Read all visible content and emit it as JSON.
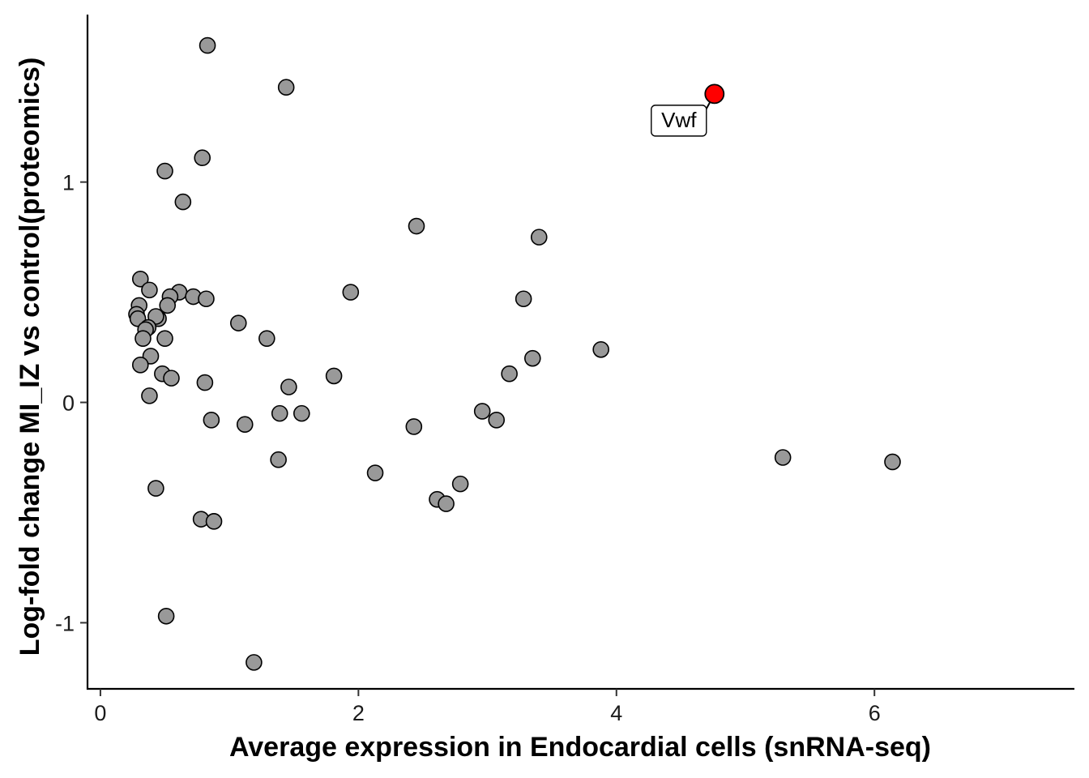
{
  "chart_data": {
    "type": "scatter",
    "title": "",
    "xlabel": "Average expression in Endocardial cells (snRNA-seq)",
    "ylabel": "Log-fold change MI_IZ vs control(proteomics)",
    "xlim": [
      -0.1,
      7.55
    ],
    "ylim": [
      -1.3,
      1.76
    ],
    "x_ticks": [
      0,
      2,
      4,
      6
    ],
    "x_tick_labels": [
      "0",
      "2",
      "4",
      "6"
    ],
    "y_ticks": [
      -1,
      0,
      1
    ],
    "y_tick_labels": [
      "-1",
      "0",
      "1"
    ],
    "grid": false,
    "legend": "none",
    "colors": {
      "point_fill": "#999999",
      "point_stroke": "#000000",
      "highlight_fill": "#ff0000"
    },
    "points": [
      {
        "x": 0.83,
        "y": 1.62
      },
      {
        "x": 1.44,
        "y": 1.43
      },
      {
        "x": 0.79,
        "y": 1.11
      },
      {
        "x": 0.5,
        "y": 1.05
      },
      {
        "x": 0.64,
        "y": 0.91
      },
      {
        "x": 2.45,
        "y": 0.8
      },
      {
        "x": 3.4,
        "y": 0.75
      },
      {
        "x": 0.31,
        "y": 0.56
      },
      {
        "x": 0.38,
        "y": 0.51
      },
      {
        "x": 0.61,
        "y": 0.5
      },
      {
        "x": 1.94,
        "y": 0.5
      },
      {
        "x": 0.54,
        "y": 0.48
      },
      {
        "x": 0.72,
        "y": 0.48
      },
      {
        "x": 0.82,
        "y": 0.47
      },
      {
        "x": 3.28,
        "y": 0.47
      },
      {
        "x": 0.3,
        "y": 0.44
      },
      {
        "x": 0.52,
        "y": 0.44
      },
      {
        "x": 0.28,
        "y": 0.4
      },
      {
        "x": 0.45,
        "y": 0.38
      },
      {
        "x": 0.43,
        "y": 0.39
      },
      {
        "x": 0.29,
        "y": 0.38
      },
      {
        "x": 0.37,
        "y": 0.34
      },
      {
        "x": 0.35,
        "y": 0.33
      },
      {
        "x": 1.07,
        "y": 0.36
      },
      {
        "x": 0.33,
        "y": 0.29
      },
      {
        "x": 0.5,
        "y": 0.29
      },
      {
        "x": 1.29,
        "y": 0.29
      },
      {
        "x": 3.88,
        "y": 0.24
      },
      {
        "x": 0.39,
        "y": 0.21
      },
      {
        "x": 3.35,
        "y": 0.2
      },
      {
        "x": 0.31,
        "y": 0.17
      },
      {
        "x": 0.48,
        "y": 0.13
      },
      {
        "x": 3.17,
        "y": 0.13
      },
      {
        "x": 1.81,
        "y": 0.12
      },
      {
        "x": 0.55,
        "y": 0.11
      },
      {
        "x": 0.81,
        "y": 0.09
      },
      {
        "x": 1.46,
        "y": 0.07
      },
      {
        "x": 0.38,
        "y": 0.03
      },
      {
        "x": 2.96,
        "y": -0.04
      },
      {
        "x": 1.39,
        "y": -0.05
      },
      {
        "x": 1.56,
        "y": -0.05
      },
      {
        "x": 0.86,
        "y": -0.08
      },
      {
        "x": 3.07,
        "y": -0.08
      },
      {
        "x": 1.12,
        "y": -0.1
      },
      {
        "x": 2.43,
        "y": -0.11
      },
      {
        "x": 1.38,
        "y": -0.26
      },
      {
        "x": 5.29,
        "y": -0.25
      },
      {
        "x": 6.14,
        "y": -0.27
      },
      {
        "x": 2.13,
        "y": -0.32
      },
      {
        "x": 2.79,
        "y": -0.37
      },
      {
        "x": 0.43,
        "y": -0.39
      },
      {
        "x": 2.61,
        "y": -0.44
      },
      {
        "x": 2.68,
        "y": -0.46
      },
      {
        "x": 0.78,
        "y": -0.53
      },
      {
        "x": 0.88,
        "y": -0.54
      },
      {
        "x": 0.51,
        "y": -0.97
      },
      {
        "x": 1.19,
        "y": -1.18
      }
    ],
    "highlighted": [
      {
        "x": 4.76,
        "y": 1.4,
        "label": "Vwf"
      }
    ]
  }
}
